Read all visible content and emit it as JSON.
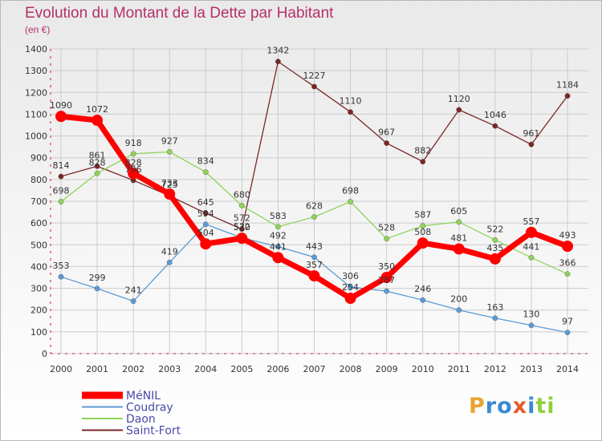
{
  "title": "Evolution du Montant de la Dette par Habitant",
  "subtitle": "(en €)",
  "logo": {
    "text": "Proxiti"
  },
  "colors": {
    "title": "#b5306b",
    "axis_text": "#333333",
    "grid": "#cccccc"
  },
  "chart_data": {
    "type": "line",
    "title": "Evolution du Montant de la Dette par Habitant",
    "ylabel": "(en €)",
    "xlabel": "",
    "ylim": [
      0,
      1400
    ],
    "yticks": [
      "0",
      "100",
      "200",
      "300",
      "400",
      "500",
      "600",
      "700",
      "800",
      "900",
      "1000",
      "1100",
      "1200",
      "1300",
      "1400"
    ],
    "grid": true,
    "legend_position": "bottom-left",
    "categories": [
      "2000",
      "2001",
      "2002",
      "2003",
      "2004",
      "2005",
      "2006",
      "2007",
      "2008",
      "2009",
      "2010",
      "2011",
      "2012",
      "2013",
      "2014"
    ],
    "series": [
      {
        "name": "MéNIL",
        "color": "#ff0000",
        "values": [
          1090,
          1072,
          828,
          733,
          504,
          530,
          441,
          357,
          254,
          350,
          508,
          481,
          435,
          557,
          493
        ]
      },
      {
        "name": "Coudray",
        "color": "#5b9bd5",
        "values": [
          353,
          299,
          241,
          419,
          594,
          532,
          492,
          443,
          306,
          287,
          246,
          200,
          163,
          130,
          97
        ]
      },
      {
        "name": "Daon",
        "color": "#8fd35a",
        "values": [
          698,
          828,
          918,
          927,
          834,
          680,
          583,
          628,
          698,
          528,
          587,
          605,
          522,
          441,
          366
        ]
      },
      {
        "name": "Saint-Fort",
        "color": "#7b2626",
        "values": [
          814,
          861,
          796,
          725,
          645,
          572,
          1342,
          1227,
          1110,
          967,
          882,
          1120,
          1046,
          961,
          1184
        ]
      }
    ],
    "data_labels": [
      [
        "1090",
        "1072",
        "828",
        "733",
        "504",
        "530",
        "441",
        "357",
        "254",
        "350",
        "508",
        "481",
        "435",
        "557",
        "493"
      ],
      [
        "353",
        "299",
        "241",
        "419",
        "594",
        "532",
        "492",
        "443",
        "306",
        "287",
        "246",
        "200",
        "163",
        "130",
        "97"
      ],
      [
        "698",
        "828",
        "918",
        "927",
        "834",
        "680",
        "583",
        "628",
        "698",
        "528",
        "587",
        "605",
        "522",
        "441",
        "366"
      ],
      [
        "814",
        "861",
        "796",
        "725",
        "645",
        "572",
        "1342",
        "1227",
        "1110",
        "967",
        "882",
        "1120",
        "1046",
        "961",
        "1184"
      ]
    ]
  }
}
